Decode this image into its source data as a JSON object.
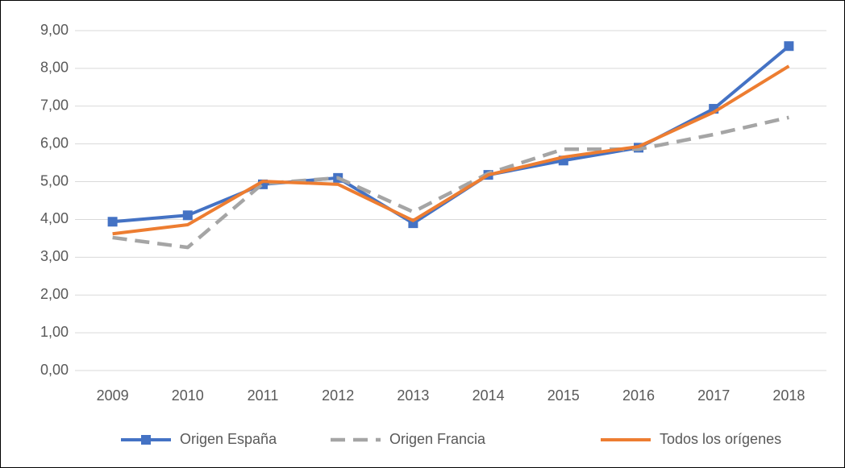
{
  "chart_data": {
    "type": "line",
    "categories": [
      "2009",
      "2010",
      "2011",
      "2012",
      "2013",
      "2014",
      "2015",
      "2016",
      "2017",
      "2018"
    ],
    "series": [
      {
        "name": "Origen España",
        "color": "#4472c4",
        "marker": "square",
        "values": [
          3.94,
          4.11,
          4.93,
          5.1,
          3.9,
          5.18,
          5.56,
          5.9,
          6.93,
          8.59
        ]
      },
      {
        "name": "Origen Francia",
        "color": "#a5a5a5",
        "dashed": true,
        "values": [
          3.52,
          3.26,
          4.95,
          5.1,
          4.2,
          5.22,
          5.86,
          5.86,
          6.25,
          6.7
        ]
      },
      {
        "name": "Todos los orígenes",
        "color": "#ed7d31",
        "values": [
          3.62,
          3.86,
          5.01,
          4.93,
          3.97,
          5.18,
          5.65,
          5.93,
          6.84,
          8.06
        ]
      }
    ],
    "ylim": [
      0,
      9
    ],
    "yticks": [
      {
        "value": 0,
        "label": "0,00"
      },
      {
        "value": 1,
        "label": "1,00"
      },
      {
        "value": 2,
        "label": "2,00"
      },
      {
        "value": 3,
        "label": "3,00"
      },
      {
        "value": 4,
        "label": "4,00"
      },
      {
        "value": 5,
        "label": "5,00"
      },
      {
        "value": 6,
        "label": "6,00"
      },
      {
        "value": 7,
        "label": "7,00"
      },
      {
        "value": 8,
        "label": "8,00"
      },
      {
        "value": 9,
        "label": "9,00"
      }
    ],
    "grid": true,
    "legend": "bottom"
  }
}
